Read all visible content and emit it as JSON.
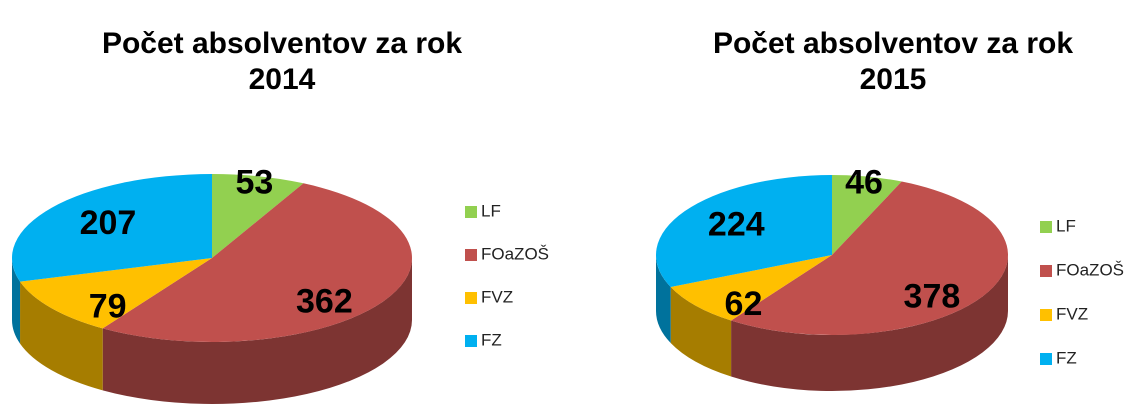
{
  "chart_data": [
    {
      "type": "pie",
      "title": [
        "Počet absolventov za rok",
        "2014"
      ],
      "categories": [
        "LF",
        "FOaZOŠ",
        "FVZ",
        "FZ"
      ],
      "values": [
        53,
        362,
        79,
        207
      ],
      "colors": [
        "#92d050",
        "#c0504d",
        "#ffc000",
        "#00b0f0"
      ],
      "legend": "right"
    },
    {
      "type": "pie",
      "title": [
        "Počet absolventov za rok",
        "2015"
      ],
      "categories": [
        "LF",
        "FOaZOŠ",
        "FVZ",
        "FZ"
      ],
      "values": [
        46,
        378,
        62,
        224
      ],
      "colors": [
        "#92d050",
        "#c0504d",
        "#ffc000",
        "#00b0f0"
      ],
      "legend": "right"
    }
  ]
}
